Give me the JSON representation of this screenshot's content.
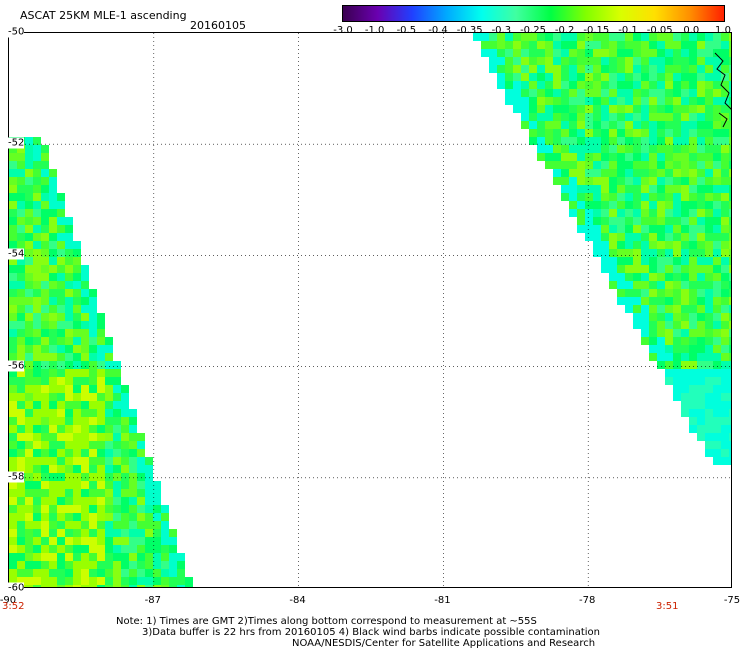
{
  "header": {
    "title": "ASCAT 25KM MLE-1 ascending",
    "date": "20160105"
  },
  "colorbar": {
    "ticks": [
      "-3.0",
      "-1.0",
      "-0.5",
      "-0.4",
      "-0.35",
      "-0.3",
      "-0.25",
      "-0.2",
      "-0.15",
      "-0.1",
      "-0.05",
      "0.0",
      "1.0"
    ],
    "colors": [
      "#3a0050",
      "#6a00b0",
      "#2040ff",
      "#00aaff",
      "#00ffee",
      "#40ffa0",
      "#00ff44",
      "#80ff00",
      "#d8ff00",
      "#ffe000",
      "#ff9000",
      "#ff2000"
    ]
  },
  "map": {
    "lat_labels": [
      "-50",
      "-52",
      "-54",
      "-56",
      "-58",
      "-60"
    ],
    "lon_labels": [
      "-90",
      "-87",
      "-84",
      "-81",
      "-78",
      "-75"
    ],
    "time_labels": {
      "left": "3:52",
      "right": "3:51"
    },
    "lat_range": [
      -60,
      -50
    ],
    "lon_range": [
      -90,
      -75
    ],
    "grid": true
  },
  "notes": [
    "Note: 1) Times are GMT 2)Times along bottom correspond to measurement at ~55S",
    "3)Data buffer is 22 hrs from 20160105 4) Black wind barbs indicate possible contamination",
    "NOAA/NESDIS/Center for Satellite Applications and Research"
  ]
}
